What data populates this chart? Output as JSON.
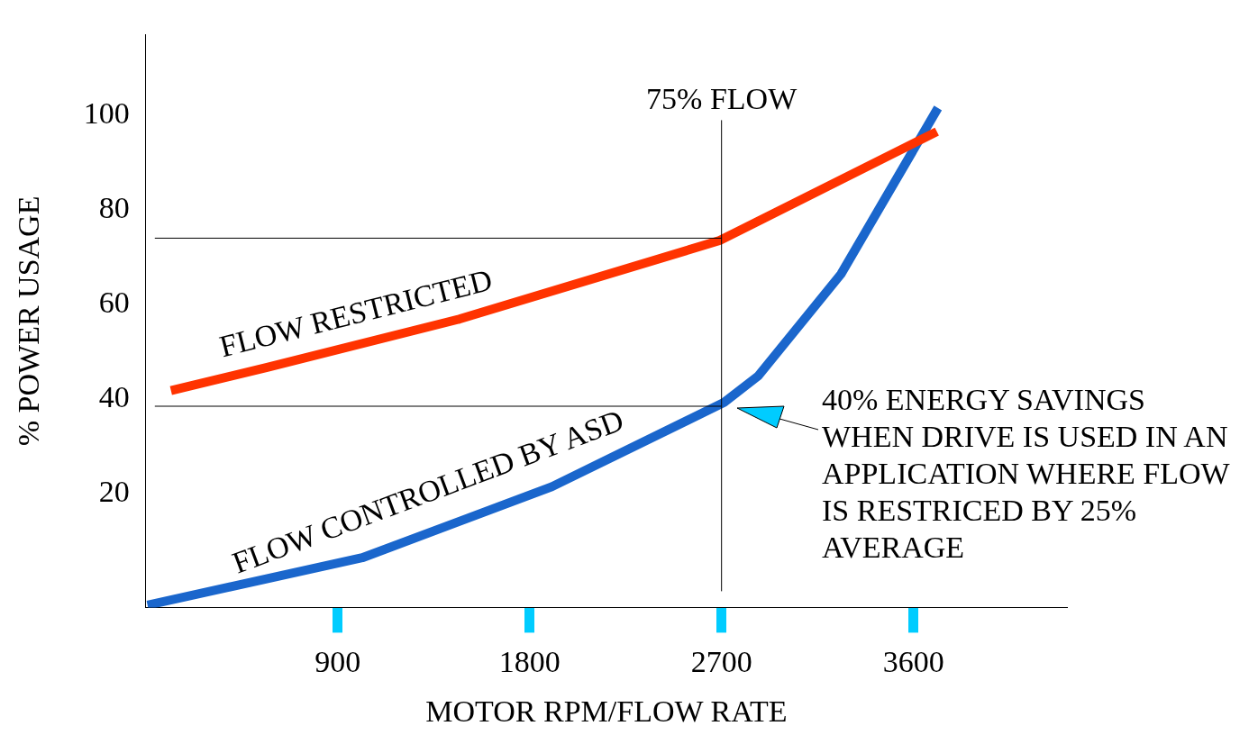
{
  "chart_data": {
    "type": "line",
    "xlabel": "MOTOR RPM/FLOW RATE",
    "ylabel": "% POWER USAGE",
    "series": [
      {
        "name": "FLOW RESTRICTED",
        "color": "#ff3300",
        "x": [
          118,
          569,
          1470,
          2691,
          3710
        ],
        "values": [
          41.8,
          46.7,
          56.9,
          73.5,
          96.5
        ]
      },
      {
        "name": "FLOW CONTROLLED BY ASD",
        "color": "#1a66cc",
        "x": [
          8,
          1015,
          1904,
          2712,
          2872,
          3260,
          3715
        ],
        "values": [
          -3.5,
          6.5,
          21.5,
          39.3,
          44.9,
          66.4,
          101.5
        ]
      }
    ],
    "xlim": [
      0,
      4320
    ],
    "ylim": [
      -4,
      117
    ],
    "xticks": [
      900,
      1800,
      2700,
      3600
    ],
    "yticks": [
      20,
      40,
      60,
      80,
      100
    ],
    "ref_lines": [
      {
        "axis": "x",
        "value": 2700,
        "label": "75% FLOW"
      },
      {
        "axis": "y",
        "value": 74
      },
      {
        "axis": "y",
        "value": 38.5
      }
    ],
    "annotations": [
      "40% ENERGY SAVINGS WHEN DRIVE IS USED IN AN APPLICATION WHERE FLOW IS RESTRICED BY 25% AVERAGE"
    ],
    "grid": false,
    "legend": false,
    "marker": "none",
    "line_style": "solid"
  }
}
